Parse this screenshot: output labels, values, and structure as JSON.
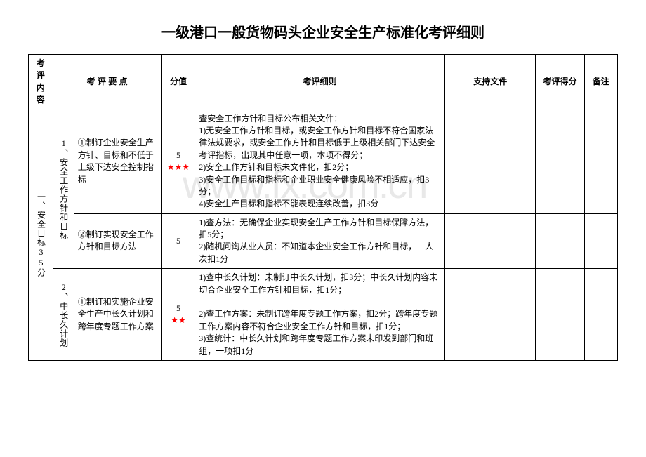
{
  "title": "一级港口一般货物码头企业安全生产标准化考评细则",
  "watermark": "www.fx.com.cn",
  "headers": {
    "col1": "考评内容",
    "col2": "考 评 要 点",
    "col3": "分值",
    "col4": "考评细则",
    "col5": "支持文件",
    "col6": "考评得分",
    "col7": "备注"
  },
  "section": {
    "label": "一、安全目标35分",
    "groups": [
      {
        "label": "1、安全工作方针和目标",
        "rows": [
          {
            "point": "①制订企业安全生产方针、目标和不低于上级下达安全控制指标",
            "score": "5",
            "stars": "★★★",
            "detail": "查安全工作方针和目标公布相关文件：\n1)无安全工作方针和目标，或安全工作方针和目标不符合国家法律法规要求，或安全工作方针和目标低于上级相关部门下达安全考评指标，出现其中任意一项，本项不得分；\n2)安全工作方针和目标未文件化，扣2分；\n3)安全工作目标和指标和企业职业安全健康风险不相适应，扣3分；\n4)安全生产目标和指标不能表现连续改善，扣3分"
          },
          {
            "point": "②制订实现安全工作方针和目标方法",
            "score": "5",
            "stars": "",
            "detail": "1)查方法：无确保企业实现安全生产工作方针和目标保障方法，扣5分；\n2)随机问询从业人员：不知道本企业安全工作方针和目标，一人次扣1分"
          }
        ]
      },
      {
        "label": "2、中长久计划",
        "rows": [
          {
            "point": "①制订和实施企业安全生产中长久计划和跨年度专题工作方案",
            "score": "5",
            "stars": "★★",
            "detail": "1)查中长久计划：未制订中长久计划，扣3分；中长久计划内容未切合企业安全工作方针和目标，扣1分；\n\n2)查工作方案：未制订跨年度专题工作方案，扣2分；跨年度专题工作方案内容不符合企业安全工作方针和目标，扣1分；\n3)查统计：中长久计划和跨年度专题工作方案未印发到部门和班组，一项扣1分"
          }
        ]
      }
    ]
  },
  "colors": {
    "star": "#ff0000",
    "border": "#000000",
    "bg": "#ffffff",
    "watermark": "#e8e8e8"
  }
}
